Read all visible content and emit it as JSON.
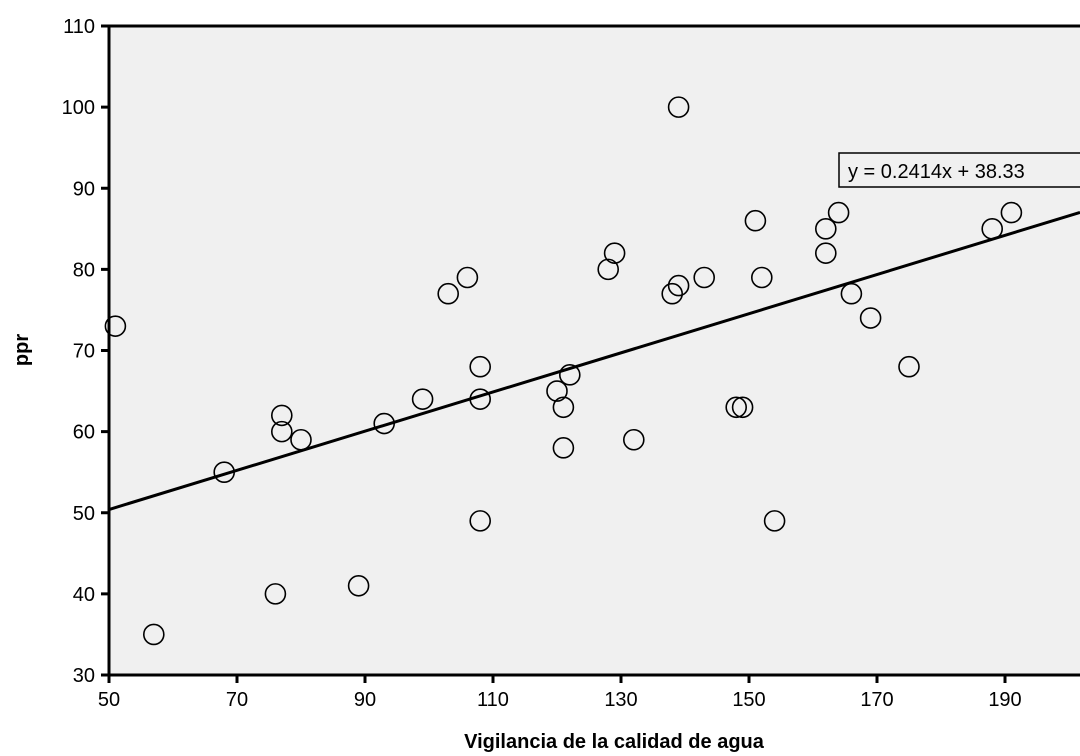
{
  "chart_data": {
    "type": "scatter",
    "title": "",
    "xlabel": "Vigilancia de la calidad de agua",
    "ylabel": "ppr",
    "xlim": [
      50,
      200
    ],
    "ylim": [
      30,
      110
    ],
    "xticks": [
      50,
      70,
      90,
      110,
      130,
      150,
      170,
      190
    ],
    "yticks": [
      30,
      40,
      50,
      60,
      70,
      80,
      90,
      100,
      110
    ],
    "grid": false,
    "plot_background": "#f0f0f0",
    "marker": "open-circle",
    "series": [
      {
        "points": [
          [
            51,
            73
          ],
          [
            57,
            35
          ],
          [
            68,
            55
          ],
          [
            76,
            40
          ],
          [
            77,
            62
          ],
          [
            77,
            60
          ],
          [
            80,
            59
          ],
          [
            89,
            41
          ],
          [
            93,
            61
          ],
          [
            99,
            64
          ],
          [
            103,
            77
          ],
          [
            106,
            79
          ],
          [
            108,
            68
          ],
          [
            108,
            64
          ],
          [
            108,
            49
          ],
          [
            120,
            65
          ],
          [
            121,
            63
          ],
          [
            121,
            58
          ],
          [
            122,
            67
          ],
          [
            128,
            80
          ],
          [
            129,
            82
          ],
          [
            132,
            59
          ],
          [
            138,
            77
          ],
          [
            139,
            78
          ],
          [
            139,
            100
          ],
          [
            143,
            79
          ],
          [
            148,
            63
          ],
          [
            149,
            63
          ],
          [
            151,
            86
          ],
          [
            152,
            79
          ],
          [
            154,
            49
          ],
          [
            162,
            85
          ],
          [
            162,
            82
          ],
          [
            164,
            87
          ],
          [
            166,
            77
          ],
          [
            169,
            74
          ],
          [
            175,
            68
          ],
          [
            188,
            85
          ],
          [
            191,
            87
          ]
        ]
      }
    ],
    "trendline": {
      "type": "linear",
      "slope": 0.2414,
      "intercept": 38.33,
      "label": "y = 0.2414x + 38.33"
    }
  }
}
